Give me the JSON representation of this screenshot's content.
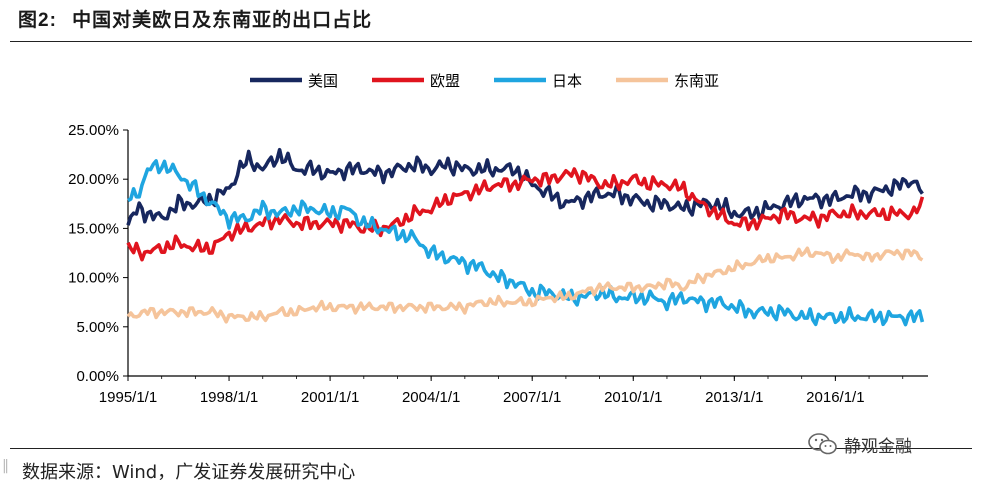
{
  "header": {
    "figure_no": "图2:",
    "title": "中国对美欧日及东南亚的出口占比"
  },
  "footer": {
    "source": "数据来源：Wind，广发证券发展研究中心",
    "brand": "静观金融"
  },
  "chart_data": {
    "type": "line",
    "title": "中国对美欧日及东南亚的出口占比",
    "ylim": [
      0,
      25
    ],
    "yticks": [
      "0.00%",
      "5.00%",
      "10.00%",
      "15.00%",
      "20.00%",
      "25.00%"
    ],
    "xrange": [
      1995.0,
      2018.75
    ],
    "xticks": [
      {
        "label": "1995/1/1",
        "x": 1995
      },
      {
        "label": "1998/1/1",
        "x": 1998
      },
      {
        "label": "2001/1/1",
        "x": 2001
      },
      {
        "label": "2004/1/1",
        "x": 2004
      },
      {
        "label": "2007/1/1",
        "x": 2007
      },
      {
        "label": "2010/1/1",
        "x": 2010
      },
      {
        "label": "2013/1/1",
        "x": 2013
      },
      {
        "label": "2016/1/1",
        "x": 2016
      }
    ],
    "legend_position": "top-center",
    "series": [
      {
        "name": "美国",
        "color": "#17275e",
        "points": [
          [
            1995.0,
            15.5
          ],
          [
            1995.3,
            17.0
          ],
          [
            1995.6,
            16.5
          ],
          [
            1996.0,
            16.0
          ],
          [
            1996.5,
            17.5
          ],
          [
            1997.0,
            17.5
          ],
          [
            1997.5,
            18.0
          ],
          [
            1998.0,
            19.0
          ],
          [
            1998.3,
            21.0
          ],
          [
            1998.6,
            22.0
          ],
          [
            1999.0,
            21.0
          ],
          [
            1999.5,
            22.5
          ],
          [
            2000.0,
            21.0
          ],
          [
            2000.5,
            21.0
          ],
          [
            2001.0,
            20.5
          ],
          [
            2001.5,
            21.0
          ],
          [
            2002.0,
            21.0
          ],
          [
            2002.5,
            20.5
          ],
          [
            2003.0,
            21.0
          ],
          [
            2003.5,
            21.5
          ],
          [
            2004.0,
            21.0
          ],
          [
            2004.5,
            21.5
          ],
          [
            2005.0,
            21.0
          ],
          [
            2005.5,
            21.0
          ],
          [
            2006.0,
            21.0
          ],
          [
            2006.5,
            21.0
          ],
          [
            2007.0,
            19.5
          ],
          [
            2007.5,
            18.5
          ],
          [
            2008.0,
            17.5
          ],
          [
            2008.5,
            18.0
          ],
          [
            2009.0,
            18.5
          ],
          [
            2009.5,
            18.5
          ],
          [
            2010.0,
            18.0
          ],
          [
            2010.5,
            17.5
          ],
          [
            2011.0,
            17.5
          ],
          [
            2011.5,
            17.0
          ],
          [
            2012.0,
            17.5
          ],
          [
            2012.5,
            17.5
          ],
          [
            2013.0,
            16.5
          ],
          [
            2013.5,
            16.5
          ],
          [
            2014.0,
            17.0
          ],
          [
            2014.5,
            17.5
          ],
          [
            2015.0,
            18.0
          ],
          [
            2015.5,
            18.0
          ],
          [
            2016.0,
            18.0
          ],
          [
            2016.5,
            18.5
          ],
          [
            2017.0,
            18.5
          ],
          [
            2017.5,
            19.0
          ],
          [
            2018.0,
            19.5
          ],
          [
            2018.3,
            20.0
          ],
          [
            2018.6,
            18.5
          ]
        ]
      },
      {
        "name": "欧盟",
        "color": "#e0141e",
        "points": [
          [
            1995.0,
            13.0
          ],
          [
            1995.5,
            12.5
          ],
          [
            1996.0,
            13.0
          ],
          [
            1996.5,
            13.5
          ],
          [
            1997.0,
            13.0
          ],
          [
            1997.5,
            13.0
          ],
          [
            1998.0,
            14.5
          ],
          [
            1998.5,
            15.0
          ],
          [
            1999.0,
            15.5
          ],
          [
            1999.5,
            16.0
          ],
          [
            2000.0,
            15.5
          ],
          [
            2000.5,
            15.5
          ],
          [
            2001.0,
            15.5
          ],
          [
            2001.5,
            15.5
          ],
          [
            2002.0,
            15.0
          ],
          [
            2002.5,
            15.0
          ],
          [
            2003.0,
            15.5
          ],
          [
            2003.5,
            16.5
          ],
          [
            2004.0,
            17.0
          ],
          [
            2004.5,
            18.0
          ],
          [
            2005.0,
            18.5
          ],
          [
            2005.5,
            19.0
          ],
          [
            2006.0,
            19.5
          ],
          [
            2006.5,
            19.5
          ],
          [
            2007.0,
            20.0
          ],
          [
            2007.5,
            20.0
          ],
          [
            2008.0,
            20.5
          ],
          [
            2008.5,
            20.5
          ],
          [
            2009.0,
            19.5
          ],
          [
            2009.5,
            19.5
          ],
          [
            2010.0,
            20.0
          ],
          [
            2010.5,
            19.5
          ],
          [
            2011.0,
            19.5
          ],
          [
            2011.5,
            19.0
          ],
          [
            2012.0,
            17.5
          ],
          [
            2012.5,
            16.5
          ],
          [
            2013.0,
            15.5
          ],
          [
            2013.5,
            15.5
          ],
          [
            2014.0,
            16.0
          ],
          [
            2014.5,
            16.5
          ],
          [
            2015.0,
            16.0
          ],
          [
            2015.5,
            16.0
          ],
          [
            2016.0,
            16.5
          ],
          [
            2016.5,
            16.5
          ],
          [
            2017.0,
            16.5
          ],
          [
            2017.5,
            16.5
          ],
          [
            2018.0,
            16.5
          ],
          [
            2018.3,
            16.5
          ],
          [
            2018.6,
            17.5
          ]
        ]
      },
      {
        "name": "日本",
        "color": "#1fa5e0",
        "points": [
          [
            1995.0,
            18.0
          ],
          [
            1995.3,
            18.5
          ],
          [
            1995.6,
            21.0
          ],
          [
            1996.0,
            21.5
          ],
          [
            1996.5,
            20.5
          ],
          [
            1997.0,
            19.0
          ],
          [
            1997.5,
            17.5
          ],
          [
            1998.0,
            16.0
          ],
          [
            1998.5,
            16.0
          ],
          [
            1999.0,
            17.0
          ],
          [
            1999.5,
            16.5
          ],
          [
            2000.0,
            17.0
          ],
          [
            2000.5,
            17.0
          ],
          [
            2001.0,
            16.5
          ],
          [
            2001.5,
            17.0
          ],
          [
            2002.0,
            15.5
          ],
          [
            2002.5,
            15.0
          ],
          [
            2003.0,
            14.5
          ],
          [
            2003.5,
            14.0
          ],
          [
            2004.0,
            12.5
          ],
          [
            2004.5,
            12.0
          ],
          [
            2005.0,
            11.5
          ],
          [
            2005.5,
            11.0
          ],
          [
            2006.0,
            10.0
          ],
          [
            2006.5,
            9.5
          ],
          [
            2007.0,
            8.5
          ],
          [
            2007.5,
            8.5
          ],
          [
            2008.0,
            8.0
          ],
          [
            2008.5,
            8.0
          ],
          [
            2009.0,
            8.5
          ],
          [
            2009.5,
            8.0
          ],
          [
            2010.0,
            8.0
          ],
          [
            2010.5,
            8.0
          ],
          [
            2011.0,
            7.5
          ],
          [
            2011.5,
            8.0
          ],
          [
            2012.0,
            7.5
          ],
          [
            2012.5,
            7.5
          ],
          [
            2013.0,
            7.0
          ],
          [
            2013.5,
            6.5
          ],
          [
            2014.0,
            6.5
          ],
          [
            2014.5,
            6.5
          ],
          [
            2015.0,
            6.0
          ],
          [
            2015.5,
            6.0
          ],
          [
            2016.0,
            6.0
          ],
          [
            2016.5,
            6.0
          ],
          [
            2017.0,
            6.0
          ],
          [
            2017.5,
            6.0
          ],
          [
            2018.0,
            6.0
          ],
          [
            2018.3,
            6.0
          ],
          [
            2018.6,
            6.0
          ]
        ]
      },
      {
        "name": "东南亚",
        "color": "#f5c49b",
        "points": [
          [
            1995.0,
            6.0
          ],
          [
            1995.5,
            6.5
          ],
          [
            1996.0,
            6.5
          ],
          [
            1996.5,
            6.5
          ],
          [
            1997.0,
            6.5
          ],
          [
            1997.5,
            6.5
          ],
          [
            1998.0,
            6.0
          ],
          [
            1998.5,
            6.0
          ],
          [
            1999.0,
            6.0
          ],
          [
            1999.5,
            6.5
          ],
          [
            2000.0,
            6.5
          ],
          [
            2000.5,
            7.0
          ],
          [
            2001.0,
            7.0
          ],
          [
            2001.5,
            7.0
          ],
          [
            2002.0,
            7.0
          ],
          [
            2002.5,
            7.0
          ],
          [
            2003.0,
            7.0
          ],
          [
            2003.5,
            7.0
          ],
          [
            2004.0,
            7.0
          ],
          [
            2004.5,
            7.0
          ],
          [
            2005.0,
            7.0
          ],
          [
            2005.5,
            7.5
          ],
          [
            2006.0,
            7.5
          ],
          [
            2006.5,
            7.5
          ],
          [
            2007.0,
            7.5
          ],
          [
            2007.5,
            8.0
          ],
          [
            2008.0,
            8.0
          ],
          [
            2008.5,
            8.5
          ],
          [
            2009.0,
            9.0
          ],
          [
            2009.5,
            9.0
          ],
          [
            2010.0,
            9.0
          ],
          [
            2010.5,
            9.0
          ],
          [
            2011.0,
            9.5
          ],
          [
            2011.5,
            9.0
          ],
          [
            2012.0,
            10.0
          ],
          [
            2012.5,
            10.5
          ],
          [
            2013.0,
            11.0
          ],
          [
            2013.5,
            11.5
          ],
          [
            2014.0,
            12.0
          ],
          [
            2014.5,
            12.0
          ],
          [
            2015.0,
            12.5
          ],
          [
            2015.5,
            12.5
          ],
          [
            2016.0,
            12.0
          ],
          [
            2016.5,
            12.5
          ],
          [
            2017.0,
            12.0
          ],
          [
            2017.5,
            12.5
          ],
          [
            2018.0,
            12.5
          ],
          [
            2018.3,
            12.5
          ],
          [
            2018.6,
            12.0
          ]
        ]
      }
    ]
  }
}
